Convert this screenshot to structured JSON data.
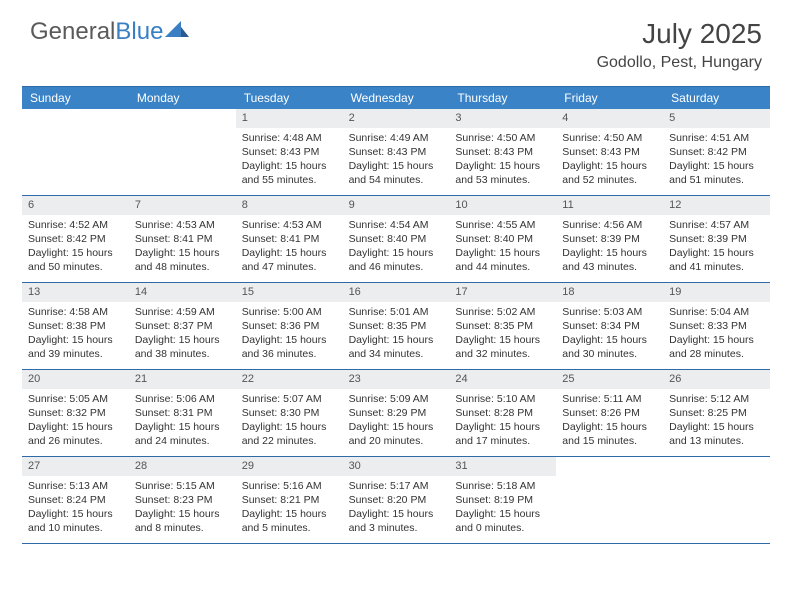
{
  "brand": {
    "part1": "General",
    "part2": "Blue"
  },
  "colors": {
    "header_band": "#3a83c7",
    "rule": "#2f6aa8",
    "daynum_bg": "#ecedef",
    "text": "#333333",
    "logo_gray": "#5a5a5a",
    "logo_blue": "#3a7fc4",
    "background": "#ffffff"
  },
  "typography": {
    "month_fontsize": 28,
    "location_fontsize": 16,
    "dow_fontsize": 12,
    "body_fontsize": 10.5
  },
  "title": "July 2025",
  "location": "Godollo, Pest, Hungary",
  "days_of_week": [
    "Sunday",
    "Monday",
    "Tuesday",
    "Wednesday",
    "Thursday",
    "Friday",
    "Saturday"
  ],
  "layout": {
    "columns": 7,
    "rows": 5,
    "first_weekday_index": 2
  },
  "weeks": [
    [
      null,
      null,
      {
        "n": "1",
        "sunrise": "4:48 AM",
        "sunset": "8:43 PM",
        "daylight": "15 hours and 55 minutes."
      },
      {
        "n": "2",
        "sunrise": "4:49 AM",
        "sunset": "8:43 PM",
        "daylight": "15 hours and 54 minutes."
      },
      {
        "n": "3",
        "sunrise": "4:50 AM",
        "sunset": "8:43 PM",
        "daylight": "15 hours and 53 minutes."
      },
      {
        "n": "4",
        "sunrise": "4:50 AM",
        "sunset": "8:43 PM",
        "daylight": "15 hours and 52 minutes."
      },
      {
        "n": "5",
        "sunrise": "4:51 AM",
        "sunset": "8:42 PM",
        "daylight": "15 hours and 51 minutes."
      }
    ],
    [
      {
        "n": "6",
        "sunrise": "4:52 AM",
        "sunset": "8:42 PM",
        "daylight": "15 hours and 50 minutes."
      },
      {
        "n": "7",
        "sunrise": "4:53 AM",
        "sunset": "8:41 PM",
        "daylight": "15 hours and 48 minutes."
      },
      {
        "n": "8",
        "sunrise": "4:53 AM",
        "sunset": "8:41 PM",
        "daylight": "15 hours and 47 minutes."
      },
      {
        "n": "9",
        "sunrise": "4:54 AM",
        "sunset": "8:40 PM",
        "daylight": "15 hours and 46 minutes."
      },
      {
        "n": "10",
        "sunrise": "4:55 AM",
        "sunset": "8:40 PM",
        "daylight": "15 hours and 44 minutes."
      },
      {
        "n": "11",
        "sunrise": "4:56 AM",
        "sunset": "8:39 PM",
        "daylight": "15 hours and 43 minutes."
      },
      {
        "n": "12",
        "sunrise": "4:57 AM",
        "sunset": "8:39 PM",
        "daylight": "15 hours and 41 minutes."
      }
    ],
    [
      {
        "n": "13",
        "sunrise": "4:58 AM",
        "sunset": "8:38 PM",
        "daylight": "15 hours and 39 minutes."
      },
      {
        "n": "14",
        "sunrise": "4:59 AM",
        "sunset": "8:37 PM",
        "daylight": "15 hours and 38 minutes."
      },
      {
        "n": "15",
        "sunrise": "5:00 AM",
        "sunset": "8:36 PM",
        "daylight": "15 hours and 36 minutes."
      },
      {
        "n": "16",
        "sunrise": "5:01 AM",
        "sunset": "8:35 PM",
        "daylight": "15 hours and 34 minutes."
      },
      {
        "n": "17",
        "sunrise": "5:02 AM",
        "sunset": "8:35 PM",
        "daylight": "15 hours and 32 minutes."
      },
      {
        "n": "18",
        "sunrise": "5:03 AM",
        "sunset": "8:34 PM",
        "daylight": "15 hours and 30 minutes."
      },
      {
        "n": "19",
        "sunrise": "5:04 AM",
        "sunset": "8:33 PM",
        "daylight": "15 hours and 28 minutes."
      }
    ],
    [
      {
        "n": "20",
        "sunrise": "5:05 AM",
        "sunset": "8:32 PM",
        "daylight": "15 hours and 26 minutes."
      },
      {
        "n": "21",
        "sunrise": "5:06 AM",
        "sunset": "8:31 PM",
        "daylight": "15 hours and 24 minutes."
      },
      {
        "n": "22",
        "sunrise": "5:07 AM",
        "sunset": "8:30 PM",
        "daylight": "15 hours and 22 minutes."
      },
      {
        "n": "23",
        "sunrise": "5:09 AM",
        "sunset": "8:29 PM",
        "daylight": "15 hours and 20 minutes."
      },
      {
        "n": "24",
        "sunrise": "5:10 AM",
        "sunset": "8:28 PM",
        "daylight": "15 hours and 17 minutes."
      },
      {
        "n": "25",
        "sunrise": "5:11 AM",
        "sunset": "8:26 PM",
        "daylight": "15 hours and 15 minutes."
      },
      {
        "n": "26",
        "sunrise": "5:12 AM",
        "sunset": "8:25 PM",
        "daylight": "15 hours and 13 minutes."
      }
    ],
    [
      {
        "n": "27",
        "sunrise": "5:13 AM",
        "sunset": "8:24 PM",
        "daylight": "15 hours and 10 minutes."
      },
      {
        "n": "28",
        "sunrise": "5:15 AM",
        "sunset": "8:23 PM",
        "daylight": "15 hours and 8 minutes."
      },
      {
        "n": "29",
        "sunrise": "5:16 AM",
        "sunset": "8:21 PM",
        "daylight": "15 hours and 5 minutes."
      },
      {
        "n": "30",
        "sunrise": "5:17 AM",
        "sunset": "8:20 PM",
        "daylight": "15 hours and 3 minutes."
      },
      {
        "n": "31",
        "sunrise": "5:18 AM",
        "sunset": "8:19 PM",
        "daylight": "15 hours and 0 minutes."
      },
      null,
      null
    ]
  ],
  "labels": {
    "sunrise_prefix": "Sunrise: ",
    "sunset_prefix": "Sunset: ",
    "daylight_prefix": "Daylight: "
  }
}
